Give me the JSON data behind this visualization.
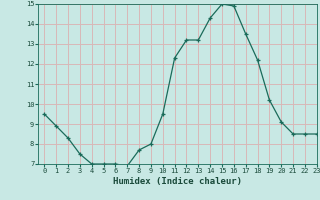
{
  "x": [
    0,
    1,
    2,
    3,
    4,
    5,
    6,
    7,
    8,
    9,
    10,
    11,
    12,
    13,
    14,
    15,
    16,
    17,
    18,
    19,
    20,
    21,
    22,
    23
  ],
  "y": [
    9.5,
    8.9,
    8.3,
    7.5,
    7.0,
    7.0,
    7.0,
    6.9,
    7.7,
    8.0,
    9.5,
    12.3,
    13.2,
    13.2,
    14.3,
    15.0,
    14.9,
    13.5,
    12.2,
    10.2,
    9.1,
    8.5,
    8.5,
    8.5
  ],
  "xlabel": "Humidex (Indice chaleur)",
  "ylim": [
    7,
    15
  ],
  "xlim": [
    -0.5,
    23
  ],
  "yticks": [
    7,
    8,
    9,
    10,
    11,
    12,
    13,
    14,
    15
  ],
  "xticks": [
    0,
    1,
    2,
    3,
    4,
    5,
    6,
    7,
    8,
    9,
    10,
    11,
    12,
    13,
    14,
    15,
    16,
    17,
    18,
    19,
    20,
    21,
    22,
    23
  ],
  "line_color": "#1a6b5a",
  "marker": "+",
  "bg_color": "#c8e8e4",
  "grid_color": "#d8b8b8",
  "font_color": "#1a4a3a"
}
